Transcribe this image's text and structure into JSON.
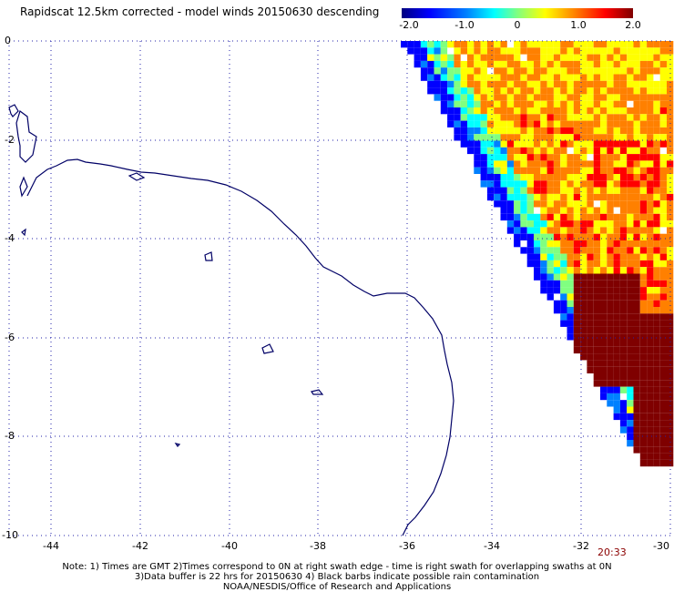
{
  "title": "Rapidscat 12.5km corrected - model winds 20150630 descending",
  "colorbar": {
    "labels": [
      "-2.0",
      "-1.0",
      "0",
      "1.0",
      "2.0"
    ],
    "range": [
      -2.0,
      2.0
    ],
    "colors": [
      "#00007f",
      "#0000ff",
      "#0080ff",
      "#00ffff",
      "#80ff80",
      "#ffff00",
      "#ff8000",
      "#ff0000",
      "#7f0000"
    ]
  },
  "map": {
    "lon_range": [
      -45,
      -30
    ],
    "lat_range": [
      -10,
      0
    ],
    "x_tick_labels": [
      "-44",
      "-42",
      "-40",
      "-38",
      "-36",
      "-34",
      "-32",
      "-30"
    ],
    "y_tick_labels": [
      "0",
      "-2",
      "-4",
      "-6",
      "-8",
      "-10"
    ],
    "gridlines": "dotted",
    "coastline_color": "#000066"
  },
  "time_label": "20:33",
  "notes": [
    "Note: 1) Times are GMT 2)Times correspond to 0N at right swath edge - time is right swath for overlapping swaths at 0N",
    "3)Data buffer is 22 hrs for 20150630 4) Black barbs indicate possible rain contamination",
    "NOAA/NESDIS/Office of Research and Applications"
  ]
}
